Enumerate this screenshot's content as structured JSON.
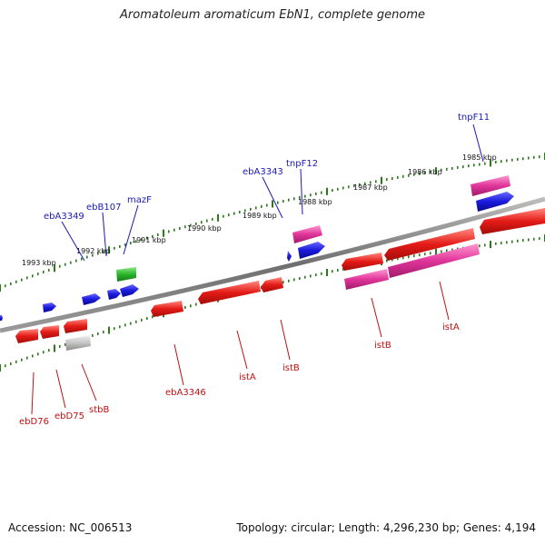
{
  "title": "Aromatoleum aromaticum EbN1, complete genome",
  "footer": {
    "accession": "Accession: NC_006513",
    "summary": "Topology: circular; Length: 4,296,230 bp; Genes: 4,194"
  },
  "colors": {
    "backbone": "#7a7a7a",
    "tick": "#2a7a1a",
    "red_gene": "#e41b17",
    "pink_gene": "#e0359a",
    "blue_gene": "#1a1adc",
    "green_gene": "#2ab52a",
    "gray_gene": "#bdbdbd",
    "blue_label": "#1a1ab0",
    "red_label": "#c01010"
  },
  "kbp_labels": [
    "1993 kbp",
    "1992 kbp",
    "1991 kbp",
    "1990 kbp",
    "1989 kbp",
    "1988 kbp",
    "1987 kbp",
    "1986 kbp",
    "1985 kbp"
  ],
  "gene_labels_top": [
    "ebA3349",
    "ebB107",
    "mazF",
    "ebA3343",
    "tnpF12",
    "tnpF11"
  ],
  "gene_labels_bottom": [
    "ebD76",
    "ebD75",
    "stbB",
    "ebA3346",
    "istA",
    "istB",
    "istB",
    "istA"
  ]
}
